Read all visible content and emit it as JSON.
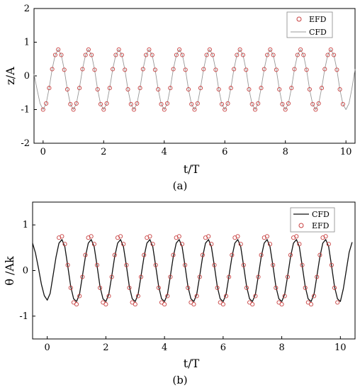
{
  "figure": {
    "panel_a_caption": "(a)",
    "panel_b_caption": "(b)"
  },
  "colors": {
    "efd_marker": "#c84040",
    "cfd_a_line": "#999999",
    "cfd_b_line": "#111111"
  },
  "chart_data": [
    {
      "type": "line",
      "title": "",
      "xlabel": "t/T",
      "ylabel": "z/A",
      "xlim": [
        -0.3,
        10.3
      ],
      "ylim": [
        -2,
        2
      ],
      "xticks": [
        0,
        2,
        4,
        6,
        8,
        10
      ],
      "yticks": [
        -2,
        -1,
        0,
        1,
        2
      ],
      "grid": false,
      "legend_position": "top-right",
      "series": [
        {
          "name": "EFD",
          "style": "markers",
          "x": [
            0.0,
            0.1,
            0.2,
            0.3,
            0.4,
            0.5,
            0.6,
            0.7,
            0.8,
            0.9,
            1.0,
            1.1,
            1.2,
            1.3,
            1.4,
            1.5,
            1.6,
            1.7,
            1.8,
            1.9,
            2.0,
            2.1,
            2.2,
            2.3,
            2.4,
            2.5,
            2.6,
            2.7,
            2.8,
            2.9,
            3.0,
            3.1,
            3.2,
            3.3,
            3.4,
            3.5,
            3.6,
            3.7,
            3.8,
            3.9,
            4.0,
            4.1,
            4.2,
            4.3,
            4.4,
            4.5,
            4.6,
            4.7,
            4.8,
            4.9,
            5.0,
            5.1,
            5.2,
            5.3,
            5.4,
            5.5,
            5.6,
            5.7,
            5.8,
            5.9,
            6.0,
            6.1,
            6.2,
            6.3,
            6.4,
            6.5,
            6.6,
            6.7,
            6.8,
            6.9,
            7.0,
            7.1,
            7.2,
            7.3,
            7.4,
            7.5,
            7.6,
            7.7,
            7.8,
            7.9,
            8.0,
            8.1,
            8.2,
            8.3,
            8.4,
            8.5,
            8.6,
            8.7,
            8.8,
            8.9,
            9.0,
            9.1,
            9.2,
            9.3,
            9.4,
            9.5,
            9.6,
            9.7,
            9.8,
            9.9
          ],
          "y": [
            -1.0,
            -0.82,
            -0.36,
            0.2,
            0.62,
            0.78,
            0.62,
            0.18,
            -0.4,
            -0.84,
            -1.0,
            -0.82,
            -0.36,
            0.2,
            0.62,
            0.78,
            0.62,
            0.18,
            -0.4,
            -0.84,
            -1.0,
            -0.82,
            -0.36,
            0.2,
            0.62,
            0.78,
            0.62,
            0.18,
            -0.4,
            -0.84,
            -1.0,
            -0.82,
            -0.36,
            0.2,
            0.62,
            0.78,
            0.62,
            0.18,
            -0.4,
            -0.84,
            -1.0,
            -0.82,
            -0.36,
            0.2,
            0.62,
            0.78,
            0.62,
            0.18,
            -0.4,
            -0.84,
            -1.0,
            -0.82,
            -0.36,
            0.2,
            0.62,
            0.78,
            0.62,
            0.18,
            -0.4,
            -0.84,
            -1.0,
            -0.82,
            -0.36,
            0.2,
            0.62,
            0.78,
            0.62,
            0.18,
            -0.4,
            -0.84,
            -1.0,
            -0.82,
            -0.36,
            0.2,
            0.62,
            0.78,
            0.62,
            0.18,
            -0.4,
            -0.84,
            -1.0,
            -0.82,
            -0.36,
            0.2,
            0.62,
            0.78,
            0.62,
            0.18,
            -0.4,
            -0.84,
            -1.0,
            -0.82,
            -0.36,
            0.2,
            0.62,
            0.78,
            0.62,
            0.18,
            -0.4,
            -0.84
          ]
        },
        {
          "name": "CFD",
          "style": "line",
          "x": [
            -0.3,
            -0.2,
            -0.1,
            0.0,
            0.1,
            0.2,
            0.3,
            0.4,
            0.5,
            0.6,
            0.7,
            0.8,
            0.9,
            1.0,
            1.1,
            1.2,
            1.3,
            1.4,
            1.5,
            1.6,
            1.7,
            1.8,
            1.9,
            2.0,
            2.1,
            2.2,
            2.3,
            2.4,
            2.5,
            2.6,
            2.7,
            2.8,
            2.9,
            3.0,
            3.1,
            3.2,
            3.3,
            3.4,
            3.5,
            3.6,
            3.7,
            3.8,
            3.9,
            4.0,
            4.1,
            4.2,
            4.3,
            4.4,
            4.5,
            4.6,
            4.7,
            4.8,
            4.9,
            5.0,
            5.1,
            5.2,
            5.3,
            5.4,
            5.5,
            5.6,
            5.7,
            5.8,
            5.9,
            6.0,
            6.1,
            6.2,
            6.3,
            6.4,
            6.5,
            6.6,
            6.7,
            6.8,
            6.9,
            7.0,
            7.1,
            7.2,
            7.3,
            7.4,
            7.5,
            7.6,
            7.7,
            7.8,
            7.9,
            8.0,
            8.1,
            8.2,
            8.3,
            8.4,
            8.5,
            8.6,
            8.7,
            8.8,
            8.9,
            9.0,
            9.1,
            9.2,
            9.3,
            9.4,
            9.5,
            9.6,
            9.7,
            9.8,
            9.9,
            10.0,
            10.1,
            10.2,
            10.3
          ],
          "y": [
            0.05,
            -0.4,
            -0.82,
            -1.0,
            -0.82,
            -0.36,
            0.2,
            0.62,
            0.78,
            0.62,
            0.18,
            -0.4,
            -0.84,
            -1.0,
            -0.82,
            -0.36,
            0.2,
            0.62,
            0.78,
            0.62,
            0.18,
            -0.4,
            -0.84,
            -1.0,
            -0.82,
            -0.36,
            0.2,
            0.62,
            0.78,
            0.62,
            0.18,
            -0.4,
            -0.84,
            -1.0,
            -0.82,
            -0.36,
            0.2,
            0.62,
            0.78,
            0.62,
            0.18,
            -0.4,
            -0.84,
            -1.0,
            -0.82,
            -0.36,
            0.2,
            0.62,
            0.78,
            0.62,
            0.18,
            -0.4,
            -0.84,
            -1.0,
            -0.82,
            -0.36,
            0.2,
            0.62,
            0.78,
            0.62,
            0.18,
            -0.4,
            -0.84,
            -1.0,
            -0.82,
            -0.36,
            0.2,
            0.62,
            0.78,
            0.62,
            0.18,
            -0.4,
            -0.84,
            -1.0,
            -0.82,
            -0.36,
            0.2,
            0.62,
            0.78,
            0.62,
            0.18,
            -0.4,
            -0.84,
            -1.0,
            -0.82,
            -0.36,
            0.2,
            0.62,
            0.78,
            0.62,
            0.18,
            -0.4,
            -0.84,
            -1.0,
            -0.82,
            -0.36,
            0.2,
            0.62,
            0.78,
            0.62,
            0.18,
            -0.4,
            -0.84,
            -1.0,
            -0.82,
            -0.36,
            0.2
          ]
        }
      ]
    },
    {
      "type": "line",
      "title": "",
      "xlabel": "t/T",
      "ylabel": "θ /Ak",
      "xlim": [
        -0.5,
        10.5
      ],
      "ylim": [
        -1.5,
        1.5
      ],
      "xticks": [
        0,
        2,
        4,
        6,
        8,
        10
      ],
      "yticks": [
        -1,
        0,
        1
      ],
      "grid": false,
      "legend_position": "top-right",
      "series": [
        {
          "name": "CFD",
          "style": "line",
          "x": [
            -0.5,
            -0.4,
            -0.3,
            -0.2,
            -0.1,
            0.0,
            0.1,
            0.2,
            0.3,
            0.4,
            0.5,
            0.6,
            0.7,
            0.8,
            0.9,
            1.0,
            1.1,
            1.2,
            1.3,
            1.4,
            1.5,
            1.6,
            1.7,
            1.8,
            1.9,
            2.0,
            2.1,
            2.2,
            2.3,
            2.4,
            2.5,
            2.6,
            2.7,
            2.8,
            2.9,
            3.0,
            3.1,
            3.2,
            3.3,
            3.4,
            3.5,
            3.6,
            3.7,
            3.8,
            3.9,
            4.0,
            4.1,
            4.2,
            4.3,
            4.4,
            4.5,
            4.6,
            4.7,
            4.8,
            4.9,
            5.0,
            5.1,
            5.2,
            5.3,
            5.4,
            5.5,
            5.6,
            5.7,
            5.8,
            5.9,
            6.0,
            6.1,
            6.2,
            6.3,
            6.4,
            6.5,
            6.6,
            6.7,
            6.8,
            6.9,
            7.0,
            7.1,
            7.2,
            7.3,
            7.4,
            7.5,
            7.6,
            7.7,
            7.8,
            7.9,
            8.0,
            8.1,
            8.2,
            8.3,
            8.4,
            8.5,
            8.6,
            8.7,
            8.8,
            8.9,
            9.0,
            9.1,
            9.2,
            9.3,
            9.4,
            9.5,
            9.6,
            9.7,
            9.8,
            9.9,
            10.0,
            10.1,
            10.2,
            10.3,
            10.4
          ],
          "y": [
            0.6,
            0.38,
            0.05,
            -0.3,
            -0.55,
            -0.65,
            -0.5,
            -0.1,
            0.3,
            0.6,
            0.68,
            0.52,
            0.1,
            -0.35,
            -0.62,
            -0.68,
            -0.52,
            -0.12,
            0.3,
            0.6,
            0.68,
            0.52,
            0.1,
            -0.35,
            -0.62,
            -0.68,
            -0.52,
            -0.12,
            0.3,
            0.6,
            0.68,
            0.52,
            0.1,
            -0.35,
            -0.62,
            -0.68,
            -0.52,
            -0.12,
            0.3,
            0.6,
            0.68,
            0.52,
            0.1,
            -0.35,
            -0.62,
            -0.68,
            -0.52,
            -0.12,
            0.3,
            0.6,
            0.68,
            0.52,
            0.1,
            -0.35,
            -0.62,
            -0.68,
            -0.52,
            -0.12,
            0.3,
            0.6,
            0.68,
            0.52,
            0.1,
            -0.35,
            -0.62,
            -0.68,
            -0.52,
            -0.12,
            0.3,
            0.6,
            0.68,
            0.52,
            0.1,
            -0.35,
            -0.62,
            -0.68,
            -0.52,
            -0.12,
            0.3,
            0.6,
            0.68,
            0.52,
            0.1,
            -0.35,
            -0.62,
            -0.68,
            -0.52,
            -0.12,
            0.3,
            0.6,
            0.68,
            0.52,
            0.1,
            -0.35,
            -0.62,
            -0.68,
            -0.52,
            -0.12,
            0.3,
            0.6,
            0.68,
            0.52,
            0.1,
            -0.35,
            -0.62,
            -0.68,
            -0.4,
            0.0,
            0.4,
            0.62
          ]
        },
        {
          "name": "EFD",
          "style": "markers",
          "x": [
            0.4,
            0.5,
            0.6,
            0.7,
            0.8,
            0.9,
            1.0,
            1.1,
            1.2,
            1.3,
            1.4,
            1.5,
            1.6,
            1.7,
            1.8,
            1.9,
            2.0,
            2.1,
            2.2,
            2.3,
            2.4,
            2.5,
            2.6,
            2.7,
            2.8,
            2.9,
            3.0,
            3.1,
            3.2,
            3.3,
            3.4,
            3.5,
            3.6,
            3.7,
            3.8,
            3.9,
            4.0,
            4.1,
            4.2,
            4.3,
            4.4,
            4.5,
            4.6,
            4.7,
            4.8,
            4.9,
            5.0,
            5.1,
            5.2,
            5.3,
            5.4,
            5.5,
            5.6,
            5.7,
            5.8,
            5.9,
            6.0,
            6.1,
            6.2,
            6.3,
            6.4,
            6.5,
            6.6,
            6.7,
            6.8,
            6.9,
            7.0,
            7.1,
            7.2,
            7.3,
            7.4,
            7.5,
            7.6,
            7.7,
            7.8,
            7.9,
            8.0,
            8.1,
            8.2,
            8.3,
            8.4,
            8.5,
            8.6,
            8.7,
            8.8,
            8.9,
            9.0,
            9.1,
            9.2,
            9.3,
            9.4,
            9.5,
            9.6,
            9.7,
            9.8,
            9.9
          ],
          "y": [
            0.72,
            0.75,
            0.58,
            0.12,
            -0.38,
            -0.7,
            -0.74,
            -0.56,
            -0.14,
            0.34,
            0.72,
            0.75,
            0.58,
            0.12,
            -0.38,
            -0.7,
            -0.74,
            -0.56,
            -0.14,
            0.34,
            0.72,
            0.75,
            0.58,
            0.12,
            -0.38,
            -0.7,
            -0.74,
            -0.56,
            -0.14,
            0.34,
            0.72,
            0.75,
            0.58,
            0.12,
            -0.38,
            -0.7,
            -0.74,
            -0.56,
            -0.14,
            0.34,
            0.72,
            0.75,
            0.58,
            0.12,
            -0.38,
            -0.7,
            -0.74,
            -0.56,
            -0.14,
            0.34,
            0.72,
            0.75,
            0.58,
            0.12,
            -0.38,
            -0.7,
            -0.74,
            -0.56,
            -0.14,
            0.34,
            0.72,
            0.75,
            0.58,
            0.12,
            -0.38,
            -0.7,
            -0.74,
            -0.56,
            -0.14,
            0.34,
            0.72,
            0.75,
            0.58,
            0.12,
            -0.38,
            -0.7,
            -0.74,
            -0.56,
            -0.14,
            0.34,
            0.72,
            0.75,
            0.58,
            0.12,
            -0.38,
            -0.7,
            -0.74,
            -0.56,
            -0.14,
            0.34,
            0.72,
            0.75,
            0.58,
            0.12,
            -0.38,
            -0.7
          ]
        }
      ]
    }
  ]
}
